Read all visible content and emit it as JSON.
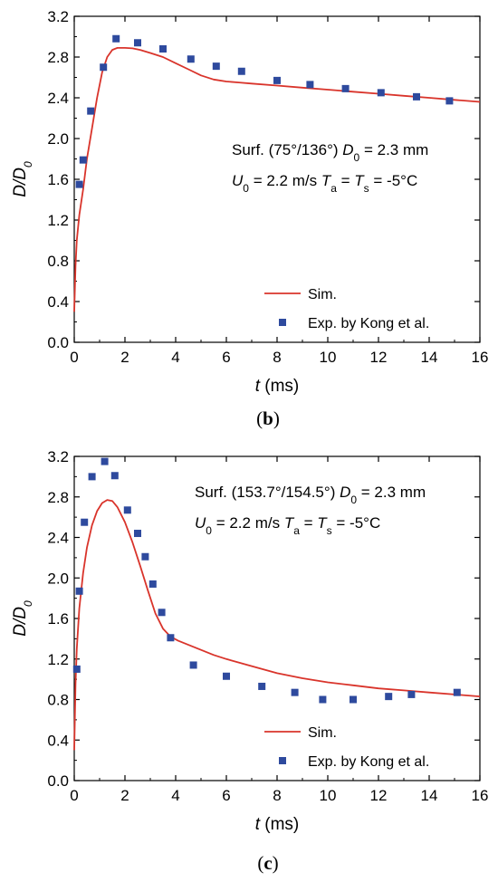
{
  "chart_data": [
    {
      "panel_label": "b",
      "type": "line",
      "xlabel": "t (ms)",
      "ylabel": "D/D0",
      "xlim": [
        0,
        16
      ],
      "ylim": [
        0,
        3.2
      ],
      "xticks": [
        "0",
        "2",
        "4",
        "6",
        "8",
        "10",
        "12",
        "14",
        "16"
      ],
      "yticks": [
        "0.0",
        "0.4",
        "0.8",
        "1.2",
        "1.6",
        "2.0",
        "2.4",
        "2.8",
        "3.2"
      ],
      "annotation_line1": "Surf. (75°/136°) D0 = 2.3 mm",
      "annotation_line2": "U0 = 2.2 m/s Ta = Ts = -5°C",
      "legend_position": "bottom-right",
      "series": [
        {
          "name": "Sim.",
          "kind": "line",
          "color": "#d9342b",
          "x": [
            0,
            0.05,
            0.1,
            0.2,
            0.35,
            0.5,
            0.7,
            0.9,
            1.1,
            1.3,
            1.5,
            1.7,
            2.0,
            2.3,
            2.6,
            3.0,
            3.5,
            4.0,
            4.5,
            5.0,
            5.5,
            6.0,
            6.5,
            7.0,
            8.0,
            9.0,
            10.0,
            11.0,
            12.0,
            13.0,
            14.0,
            15.0,
            16.0
          ],
          "y": [
            0.3,
            0.75,
            1.0,
            1.25,
            1.5,
            1.8,
            2.1,
            2.4,
            2.65,
            2.8,
            2.87,
            2.89,
            2.89,
            2.885,
            2.87,
            2.84,
            2.8,
            2.74,
            2.68,
            2.62,
            2.58,
            2.56,
            2.55,
            2.54,
            2.52,
            2.5,
            2.48,
            2.46,
            2.44,
            2.42,
            2.4,
            2.38,
            2.36
          ]
        },
        {
          "name": "Exp. by Kong et al.",
          "kind": "scatter",
          "color": "#2e4a9e",
          "x": [
            0.2,
            0.35,
            0.65,
            1.15,
            1.65,
            2.5,
            3.5,
            4.6,
            5.6,
            6.6,
            8.0,
            9.3,
            10.7,
            12.1,
            13.5,
            14.8
          ],
          "y": [
            1.55,
            1.79,
            2.27,
            2.7,
            2.98,
            2.94,
            2.88,
            2.78,
            2.71,
            2.66,
            2.57,
            2.53,
            2.49,
            2.45,
            2.41,
            2.37
          ]
        }
      ]
    },
    {
      "panel_label": "c",
      "type": "line",
      "xlabel": "t (ms)",
      "ylabel": "D/D0",
      "xlim": [
        0,
        16
      ],
      "ylim": [
        0,
        3.2
      ],
      "xticks": [
        "0",
        "2",
        "4",
        "6",
        "8",
        "10",
        "12",
        "14",
        "16"
      ],
      "yticks": [
        "0.0",
        "0.4",
        "0.8",
        "1.2",
        "1.6",
        "2.0",
        "2.4",
        "2.8",
        "3.2"
      ],
      "annotation_line1": "Surf. (153.7°/154.5°) D0 = 2.3 mm",
      "annotation_line2": "U0 = 2.2 m/s Ta = Ts = -5°C",
      "legend_position": "bottom-right",
      "series": [
        {
          "name": "Sim.",
          "kind": "line",
          "color": "#d9342b",
          "x": [
            0,
            0.05,
            0.1,
            0.2,
            0.35,
            0.5,
            0.7,
            0.9,
            1.1,
            1.3,
            1.5,
            1.7,
            2.0,
            2.3,
            2.6,
            2.9,
            3.2,
            3.5,
            3.8,
            4.1,
            4.5,
            5.0,
            5.5,
            6.0,
            7.0,
            8.0,
            9.0,
            10.0,
            11.0,
            12.0,
            13.0,
            14.0,
            15.0,
            16.0
          ],
          "y": [
            0.3,
            0.95,
            1.3,
            1.7,
            2.05,
            2.3,
            2.52,
            2.66,
            2.74,
            2.77,
            2.76,
            2.7,
            2.55,
            2.35,
            2.12,
            1.88,
            1.65,
            1.5,
            1.42,
            1.38,
            1.34,
            1.29,
            1.24,
            1.2,
            1.13,
            1.06,
            1.01,
            0.97,
            0.94,
            0.91,
            0.89,
            0.87,
            0.85,
            0.83
          ]
        },
        {
          "name": "Exp. by Kong et al.",
          "kind": "scatter",
          "color": "#2e4a9e",
          "x": [
            0.1,
            0.2,
            0.4,
            0.7,
            1.2,
            1.6,
            2.1,
            2.5,
            2.8,
            3.1,
            3.45,
            3.8,
            4.7,
            6.0,
            7.4,
            8.7,
            9.8,
            11.0,
            12.4,
            13.3,
            15.1
          ],
          "y": [
            1.1,
            1.87,
            2.55,
            3.0,
            3.15,
            3.01,
            2.67,
            2.44,
            2.21,
            1.94,
            1.66,
            1.41,
            1.14,
            1.03,
            0.93,
            0.87,
            0.8,
            0.8,
            0.83,
            0.85,
            0.87
          ]
        }
      ]
    }
  ]
}
